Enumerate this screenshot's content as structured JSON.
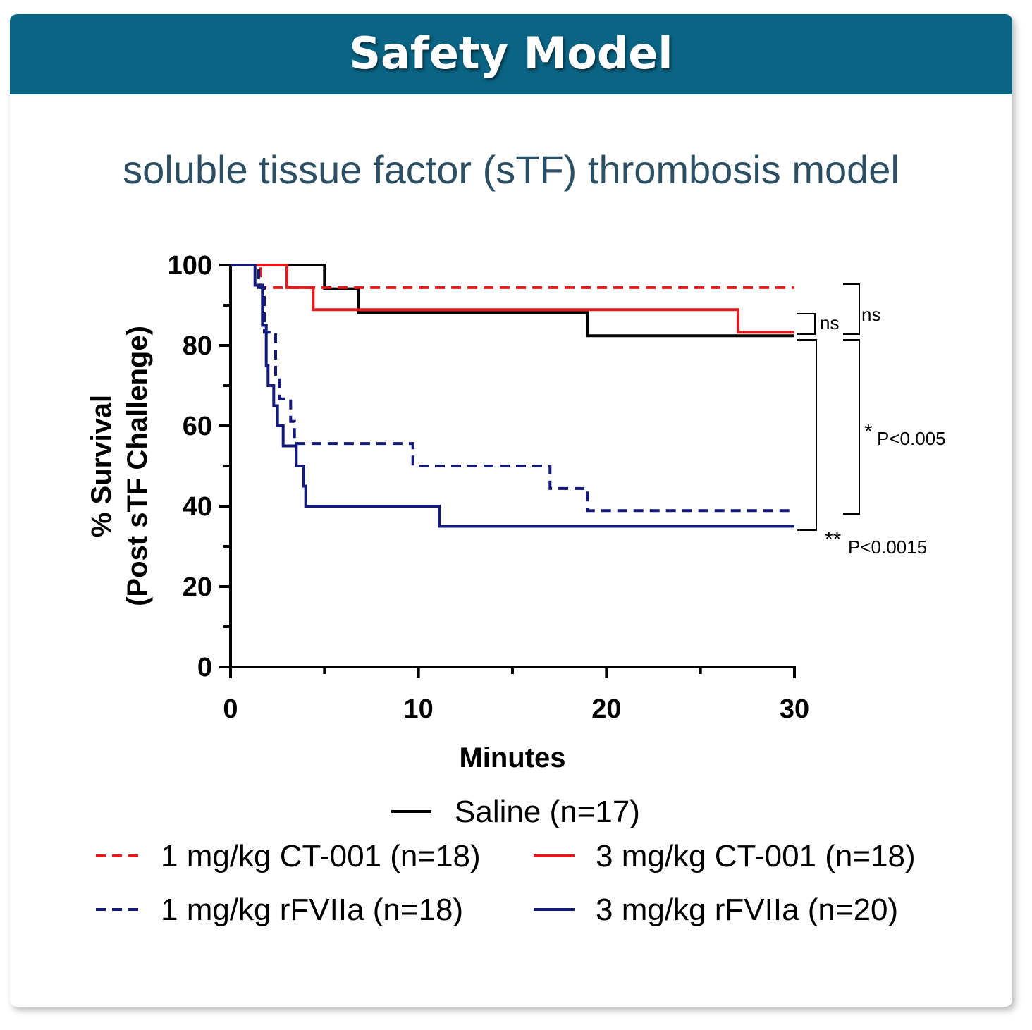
{
  "banner": {
    "title": "Safety Model"
  },
  "subtitle": "soluble tissue factor (sTF) thrombosis model",
  "chart_data": {
    "type": "line",
    "step": true,
    "xlabel": "Minutes",
    "ylabel_line1": "% Survival",
    "ylabel_line2": "(Post sTF Challenge)",
    "xlim": [
      0,
      30
    ],
    "ylim": [
      0,
      100
    ],
    "x_ticks": [
      0,
      10,
      20,
      30
    ],
    "x_minor_ticks": [
      5,
      15,
      25
    ],
    "y_ticks": [
      0,
      20,
      40,
      60,
      80,
      100
    ],
    "y_minor_ticks": [
      10,
      30,
      50,
      70,
      90
    ],
    "grid": false,
    "legend_position": "bottom",
    "series": [
      {
        "name": "Saline (n=17)",
        "color": "#000000",
        "dash": "solid",
        "points": [
          [
            0,
            100
          ],
          [
            5,
            100
          ],
          [
            5,
            94.1
          ],
          [
            6.8,
            94.1
          ],
          [
            6.8,
            88.2
          ],
          [
            19,
            88.2
          ],
          [
            19,
            82.4
          ],
          [
            30,
            82.4
          ]
        ]
      },
      {
        "name": "1 mg/kg CT-001 (n=18)",
        "color": "#e01b1b",
        "dash": "dashed",
        "points": [
          [
            0,
            100
          ],
          [
            1.6,
            100
          ],
          [
            1.6,
            94.4
          ],
          [
            30,
            94.4
          ]
        ]
      },
      {
        "name": "3 mg/kg CT-001 (n=18)",
        "color": "#e01b1b",
        "dash": "solid",
        "points": [
          [
            0,
            100
          ],
          [
            3,
            100
          ],
          [
            3,
            94.4
          ],
          [
            4.4,
            94.4
          ],
          [
            4.4,
            88.9
          ],
          [
            27,
            88.9
          ],
          [
            27,
            83.3
          ],
          [
            30,
            83.3
          ]
        ]
      },
      {
        "name": "1 mg/kg rFVIIa (n=18)",
        "color": "#141a7a",
        "dash": "dashed",
        "points": [
          [
            0,
            100
          ],
          [
            1.5,
            100
          ],
          [
            1.5,
            94.4
          ],
          [
            1.8,
            94.4
          ],
          [
            1.8,
            83.3
          ],
          [
            2.4,
            83.3
          ],
          [
            2.4,
            72.2
          ],
          [
            2.6,
            72.2
          ],
          [
            2.6,
            66.7
          ],
          [
            3.2,
            66.7
          ],
          [
            3.2,
            61.1
          ],
          [
            3.4,
            61.1
          ],
          [
            3.4,
            55.6
          ],
          [
            9.7,
            55.6
          ],
          [
            9.7,
            50
          ],
          [
            17,
            50
          ],
          [
            17,
            44.4
          ],
          [
            19,
            44.4
          ],
          [
            19,
            38.9
          ],
          [
            30,
            38.9
          ]
        ]
      },
      {
        "name": "3 mg/kg rFVIIa (n=20)",
        "color": "#141a7a",
        "dash": "solid",
        "points": [
          [
            0,
            100
          ],
          [
            1.3,
            100
          ],
          [
            1.3,
            95
          ],
          [
            1.7,
            95
          ],
          [
            1.7,
            85
          ],
          [
            1.9,
            85
          ],
          [
            1.9,
            75
          ],
          [
            2,
            75
          ],
          [
            2,
            70
          ],
          [
            2.3,
            70
          ],
          [
            2.3,
            65
          ],
          [
            2.5,
            65
          ],
          [
            2.5,
            60
          ],
          [
            2.8,
            60
          ],
          [
            2.8,
            55
          ],
          [
            3.5,
            55
          ],
          [
            3.5,
            50
          ],
          [
            3.9,
            50
          ],
          [
            3.9,
            45
          ],
          [
            4,
            45
          ],
          [
            4,
            40
          ],
          [
            11.1,
            40
          ],
          [
            11.1,
            35
          ],
          [
            30,
            35
          ]
        ]
      }
    ],
    "annotations": [
      {
        "label": "ns"
      },
      {
        "label": "ns"
      },
      {
        "star": "*",
        "label": "P<0.005"
      },
      {
        "star": "**",
        "label": "P<0.0015"
      }
    ]
  }
}
